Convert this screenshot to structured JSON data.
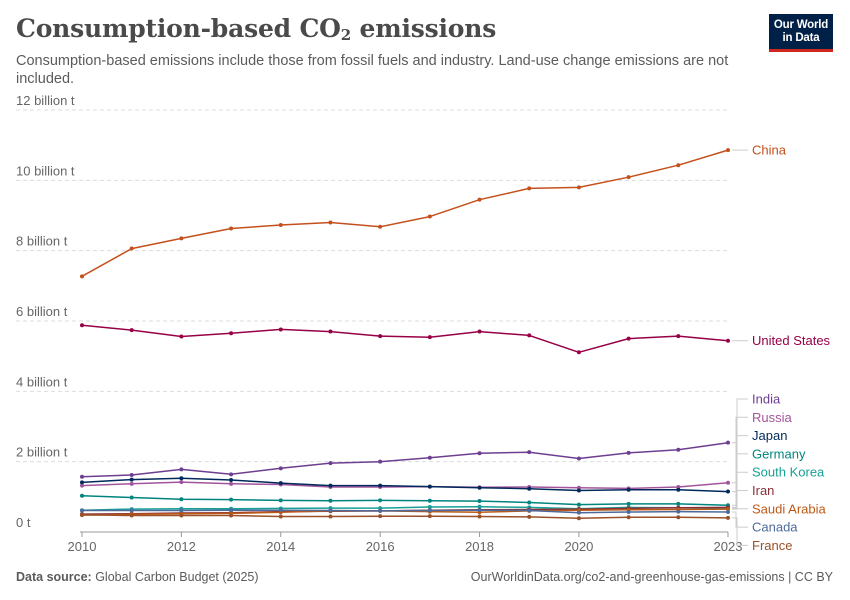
{
  "header": {
    "title_main": "Consumption-based CO",
    "title_sub": "2",
    "title_tail": " emissions",
    "subtitle": "Consumption-based emissions include those from fossil fuels and industry. Land-use change emissions are not included.",
    "logo_line1": "Our World",
    "logo_line2": "in Data"
  },
  "footer": {
    "source_label": "Data source:",
    "source_text": " Global Carbon Budget (2025)",
    "url": "OurWorldinData.org/co2-and-greenhouse-gas-emissions | CC BY"
  },
  "chart_data": {
    "type": "line",
    "x": [
      2010,
      2011,
      2012,
      2013,
      2014,
      2015,
      2016,
      2017,
      2018,
      2019,
      2020,
      2021,
      2022,
      2023
    ],
    "xticks": [
      2010,
      2012,
      2014,
      2016,
      2018,
      2020,
      2023
    ],
    "xtick_labels": [
      "2010",
      "2012",
      "2014",
      "2016",
      "2018",
      "2020",
      "2023"
    ],
    "xlim": [
      2010,
      2023
    ],
    "ylim": [
      0,
      12000000000
    ],
    "yticks": [
      0,
      2000000000,
      4000000000,
      6000000000,
      8000000000,
      10000000000,
      12000000000
    ],
    "ytick_labels": [
      "0 t",
      "2 billion t",
      "4 billion t",
      "6 billion t",
      "8 billion t",
      "10 billion t",
      "12 billion t"
    ],
    "grid": true,
    "legend": "right, labels at line ends",
    "series": [
      {
        "name": "China",
        "color": "#c4501c",
        "values": [
          7270000000,
          8060000000,
          8350000000,
          8630000000,
          8730000000,
          8800000000,
          8680000000,
          8970000000,
          9450000000,
          9770000000,
          9800000000,
          10090000000,
          10430000000,
          10860000000
        ]
      },
      {
        "name": "United States",
        "color": "#970046",
        "values": [
          5880000000,
          5740000000,
          5560000000,
          5650000000,
          5760000000,
          5700000000,
          5570000000,
          5540000000,
          5700000000,
          5590000000,
          5110000000,
          5500000000,
          5570000000,
          5440000000
        ]
      },
      {
        "name": "India",
        "color": "#6d3e91",
        "values": [
          1570000000,
          1620000000,
          1780000000,
          1640000000,
          1810000000,
          1960000000,
          2000000000,
          2110000000,
          2240000000,
          2270000000,
          2090000000,
          2250000000,
          2340000000,
          2540000000
        ]
      },
      {
        "name": "Russia",
        "color": "#a2559c",
        "values": [
          1320000000,
          1370000000,
          1420000000,
          1370000000,
          1350000000,
          1280000000,
          1280000000,
          1290000000,
          1270000000,
          1280000000,
          1260000000,
          1240000000,
          1280000000,
          1400000000
        ]
      },
      {
        "name": "Japan",
        "color": "#00295b",
        "values": [
          1410000000,
          1490000000,
          1530000000,
          1480000000,
          1390000000,
          1320000000,
          1320000000,
          1290000000,
          1260000000,
          1230000000,
          1180000000,
          1200000000,
          1200000000,
          1150000000
        ]
      },
      {
        "name": "Germany",
        "color": "#00847e",
        "values": [
          1030000000,
          980000000,
          930000000,
          920000000,
          900000000,
          890000000,
          900000000,
          890000000,
          880000000,
          840000000,
          780000000,
          800000000,
          800000000,
          760000000
        ]
      },
      {
        "name": "South Korea",
        "color": "#18a096",
        "values": [
          620000000,
          650000000,
          660000000,
          660000000,
          670000000,
          680000000,
          680000000,
          710000000,
          720000000,
          700000000,
          660000000,
          700000000,
          690000000,
          680000000
        ]
      },
      {
        "name": "Iran",
        "color": "#883039",
        "values": [
          510000000,
          520000000,
          540000000,
          550000000,
          580000000,
          590000000,
          600000000,
          620000000,
          630000000,
          640000000,
          650000000,
          670000000,
          690000000,
          700000000
        ]
      },
      {
        "name": "Saudi Arabia",
        "color": "#be5915",
        "values": [
          480000000,
          500000000,
          520000000,
          530000000,
          560000000,
          600000000,
          600000000,
          580000000,
          560000000,
          600000000,
          620000000,
          630000000,
          640000000,
          650000000
        ]
      },
      {
        "name": "Canada",
        "color": "#4c6a9c",
        "values": [
          610000000,
          610000000,
          610000000,
          620000000,
          620000000,
          610000000,
          600000000,
          610000000,
          620000000,
          610000000,
          550000000,
          570000000,
          580000000,
          570000000
        ]
      },
      {
        "name": "France",
        "color": "#9a5129",
        "values": [
          490000000,
          470000000,
          470000000,
          470000000,
          440000000,
          440000000,
          450000000,
          450000000,
          440000000,
          430000000,
          390000000,
          420000000,
          420000000,
          400000000
        ]
      }
    ]
  }
}
